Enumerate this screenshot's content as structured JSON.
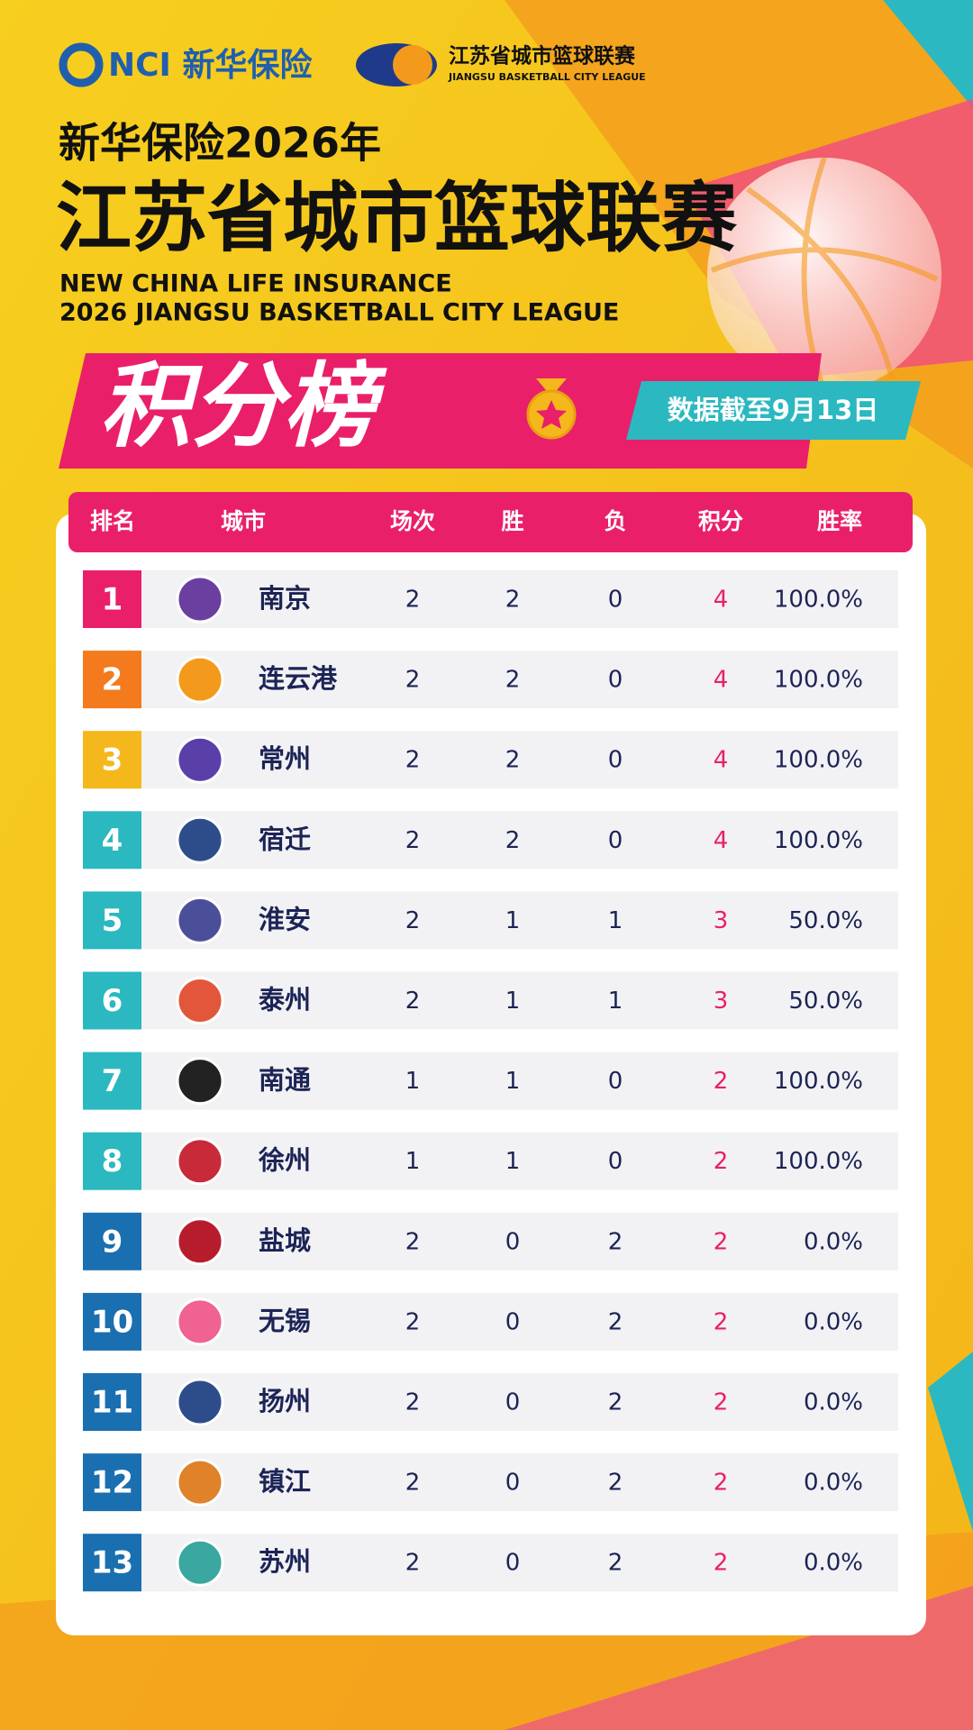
{
  "header": {
    "sponsor_logo": "NCI 新华保险",
    "league_logo_cn": "江苏省城市篮球联赛",
    "league_logo_en": "JIANGSU BASKETBALL CITY LEAGUE",
    "title_line1": "新华保险2026年",
    "title_line2": "江苏省城市篮球联赛",
    "title_en_line1": "NEW CHINA LIFE INSURANCE",
    "title_en_line2": "2026 JIANGSU BASKETBALL CITY LEAGUE"
  },
  "banner": {
    "title": "积分榜",
    "date_note": "数据截至9月13日"
  },
  "table": {
    "columns": [
      "排名",
      "城市",
      "场次",
      "胜",
      "负",
      "积分",
      "胜率"
    ],
    "rows": [
      [
        1,
        "南京",
        2,
        2,
        0,
        4,
        "100.0%"
      ],
      [
        2,
        "连云港",
        2,
        2,
        0,
        4,
        "100.0%"
      ],
      [
        3,
        "常州",
        2,
        2,
        0,
        4,
        "100.0%"
      ],
      [
        4,
        "宿迁",
        2,
        2,
        0,
        4,
        "100.0%"
      ],
      [
        5,
        "淮安",
        2,
        1,
        1,
        3,
        "50.0%"
      ],
      [
        6,
        "泰州",
        2,
        1,
        1,
        3,
        "50.0%"
      ],
      [
        7,
        "南通",
        1,
        1,
        0,
        2,
        "100.0%"
      ],
      [
        8,
        "徐州",
        1,
        1,
        0,
        2,
        "100.0%"
      ],
      [
        9,
        "盐城",
        2,
        0,
        2,
        2,
        "0.0%"
      ],
      [
        10,
        "无锡",
        2,
        0,
        2,
        2,
        "0.0%"
      ],
      [
        11,
        "扬州",
        2,
        0,
        2,
        2,
        "0.0%"
      ],
      [
        12,
        "镇江",
        2,
        0,
        2,
        2,
        "0.0%"
      ],
      [
        13,
        "苏州",
        2,
        0,
        2,
        2,
        "0.0%"
      ]
    ]
  }
}
